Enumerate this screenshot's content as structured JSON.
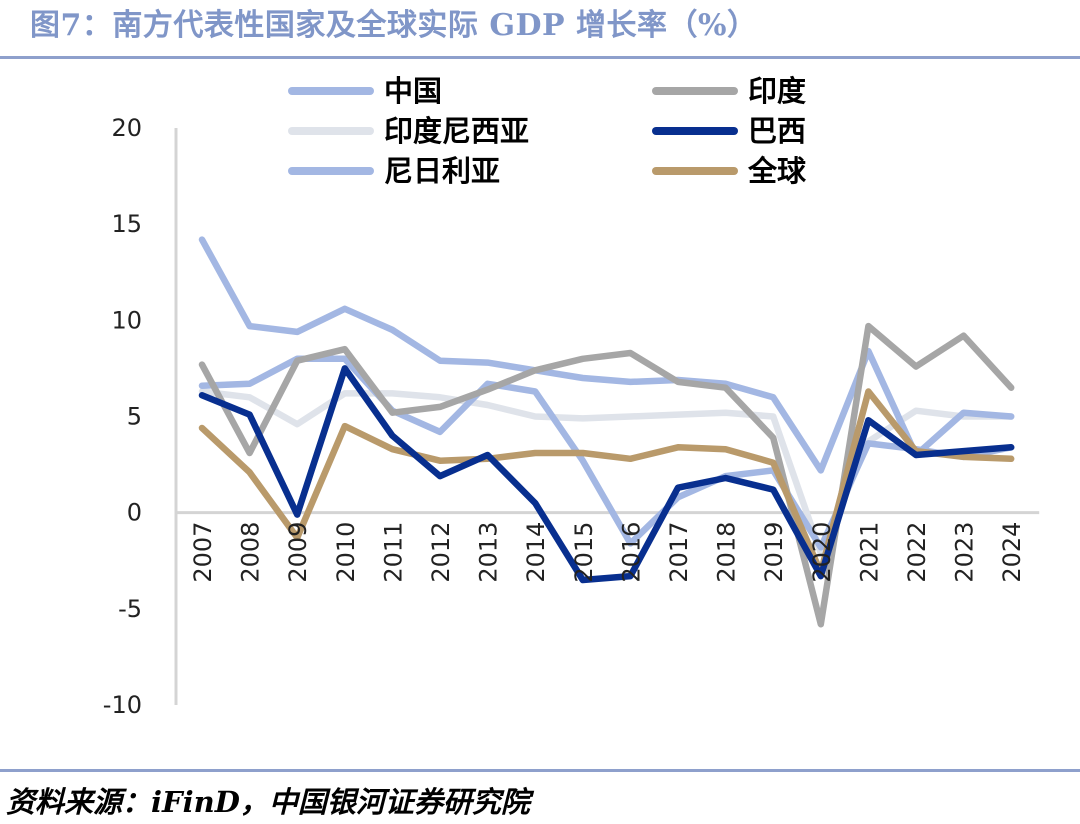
{
  "header": {
    "title": "图7：南方代表性国家及全球实际 GDP 增长率（%）"
  },
  "footer": {
    "source": "资料来源：iFinD，中国银河证券研究院"
  },
  "colors": {
    "rule": "#8ea0cc",
    "title": "#8096c8",
    "axis": "#d4d4d4"
  },
  "chart_data": {
    "type": "line",
    "title": "南方代表性国家及全球实际 GDP 增长率（%）",
    "xlabel": "",
    "ylabel": "",
    "ylim": [
      -10,
      20
    ],
    "yticks": [
      20,
      15,
      10,
      5,
      0,
      -5,
      -10
    ],
    "yticklabels": [
      "20",
      "15",
      "10",
      "5",
      "0",
      "-5",
      "-10"
    ],
    "grid": false,
    "legend_position": "top",
    "categories": [
      "2007",
      "2008",
      "2009",
      "2010",
      "2011",
      "2012",
      "2013",
      "2014",
      "2015",
      "2016",
      "2017",
      "2018",
      "2019",
      "2020",
      "2021",
      "2022",
      "2023",
      "2024"
    ],
    "series": [
      {
        "name": "中国",
        "color": "#a3b7e3",
        "width": 6.5,
        "values": [
          14.2,
          9.7,
          9.4,
          10.6,
          9.5,
          7.9,
          7.8,
          7.4,
          7.0,
          6.8,
          6.9,
          6.7,
          6.0,
          2.2,
          8.4,
          3.0,
          5.2,
          5.0
        ]
      },
      {
        "name": "印度",
        "color": "#a6a6a6",
        "width": 6.5,
        "values": [
          7.7,
          3.1,
          7.9,
          8.5,
          5.2,
          5.5,
          6.4,
          7.4,
          8.0,
          8.3,
          6.8,
          6.5,
          3.9,
          -5.8,
          9.7,
          7.6,
          9.2,
          6.5
        ]
      },
      {
        "name": "印度尼西亚",
        "color": "#dfe3ea",
        "width": 6.5,
        "values": [
          6.3,
          6.0,
          4.6,
          6.2,
          6.2,
          6.0,
          5.6,
          5.0,
          4.9,
          5.0,
          5.1,
          5.2,
          5.0,
          -2.1,
          3.7,
          5.3,
          5.0,
          5.0
        ]
      },
      {
        "name": "巴西",
        "color": "#082f8f",
        "width": 6.5,
        "values": [
          6.1,
          5.1,
          -0.1,
          7.5,
          4.0,
          1.9,
          3.0,
          0.5,
          -3.5,
          -3.3,
          1.3,
          1.8,
          1.2,
          -3.3,
          4.8,
          3.0,
          3.2,
          3.4
        ]
      },
      {
        "name": "尼日利亚",
        "color": "#a3b7e3",
        "width": 6.5,
        "values": [
          6.6,
          6.7,
          8.0,
          8.0,
          5.3,
          4.2,
          6.7,
          6.3,
          2.7,
          -1.6,
          0.8,
          1.9,
          2.2,
          -1.8,
          3.6,
          3.3,
          2.9,
          3.4
        ]
      },
      {
        "name": "全球",
        "color": "#b99a6b",
        "width": 6.5,
        "values": [
          4.4,
          2.1,
          -1.3,
          4.5,
          3.3,
          2.7,
          2.8,
          3.1,
          3.1,
          2.8,
          3.4,
          3.3,
          2.6,
          -3.1,
          6.3,
          3.2,
          2.9,
          2.8
        ]
      }
    ]
  }
}
